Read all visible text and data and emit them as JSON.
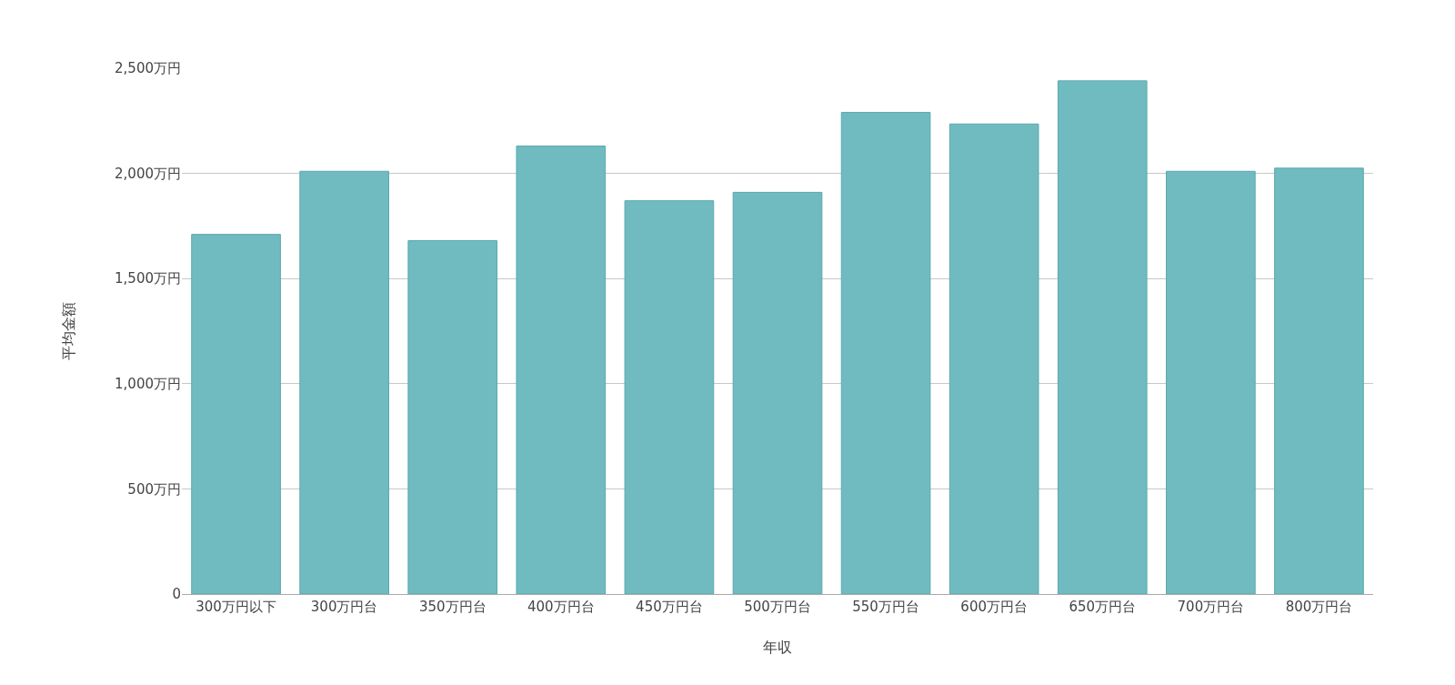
{
  "chart_data": {
    "type": "bar",
    "xlabel": "年収",
    "ylabel": "平均金額",
    "categories": [
      "300万円以下",
      "300万円台",
      "350万円台",
      "400万円台",
      "450万円台",
      "500万円台",
      "550万円台",
      "600万円台",
      "650万円台",
      "700万円台",
      "800万円台"
    ],
    "values": [
      1710,
      2010,
      1680,
      2130,
      1870,
      1910,
      2290,
      2235,
      2440,
      2010,
      2025
    ],
    "color": "#6fbbc0",
    "ylim": [
      0,
      2500
    ],
    "yticks": [
      0,
      {
        "value": 500,
        "label": "500万円"
      },
      {
        "value": 1000,
        "label": "1,000万円"
      },
      {
        "value": 1500,
        "label": "1,500万円"
      },
      {
        "value": 2000,
        "label": "2,000万円"
      },
      {
        "value": 2500,
        "label": "2,500万円"
      }
    ],
    "grid": "y"
  }
}
